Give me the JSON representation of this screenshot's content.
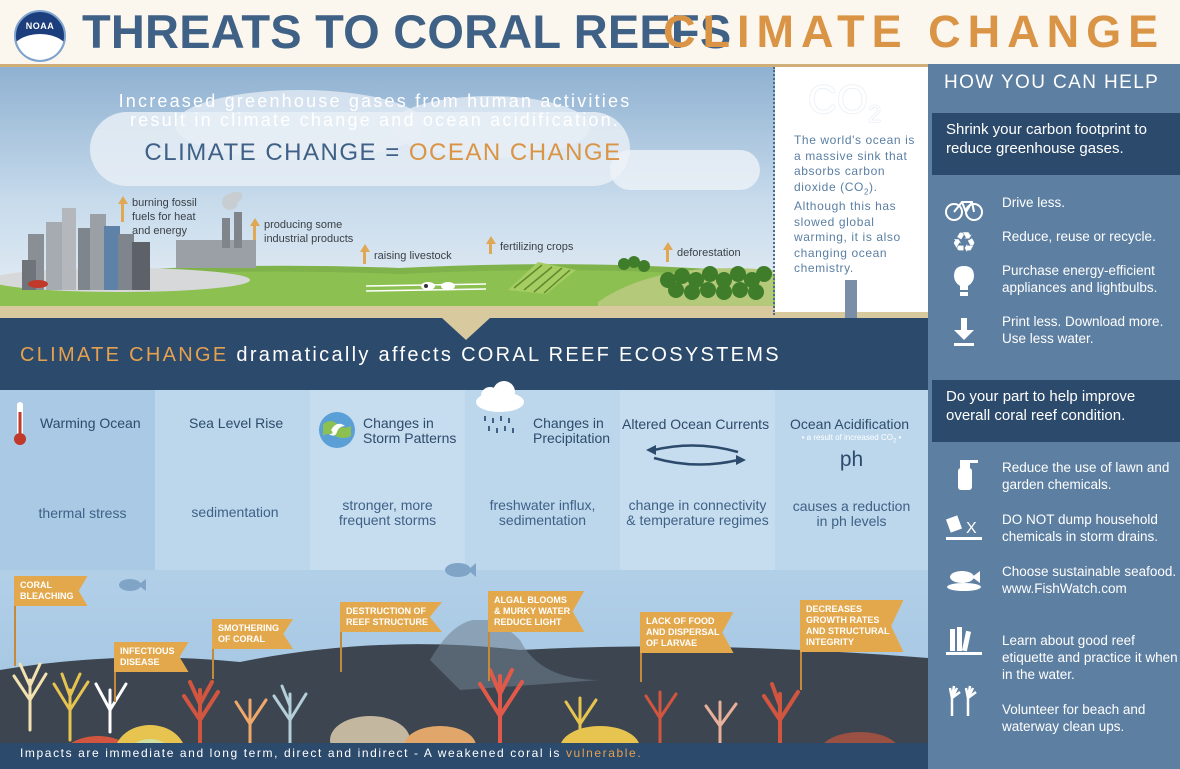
{
  "header": {
    "logo_text": "NOAA",
    "title": "THREATS TO CORAL REEFS",
    "title_accent": "CLIMATE CHANGE"
  },
  "sky": {
    "intro_line1": "Increased greenhouse gases from human activities",
    "intro_line2": "result in climate change and ocean acidification.",
    "equation_lhs": "CLIMATE CHANGE",
    "equation_eq": "=",
    "equation_rhs": "OCEAN CHANGE",
    "causes": [
      {
        "line1": "burning fossil",
        "line2": "fuels for heat",
        "line3": "and energy"
      },
      {
        "line1": "producing some",
        "line2": "industrial products"
      },
      {
        "line1": "raising livestock"
      },
      {
        "line1": "fertilizing crops"
      },
      {
        "line1": "deforestation"
      }
    ]
  },
  "co2": {
    "label": "CO",
    "sub": "2",
    "text_a": "The world's ocean is a massive sink that absorbs carbon dioxide (CO",
    "text_sub": "2",
    "text_b": "). Although this has slowed global warming, it is also changing ocean chemistry."
  },
  "section": {
    "accent": "CLIMATE CHANGE",
    "middle": "dramatically affects",
    "end": "CORAL REEF ECOSYSTEMS"
  },
  "columns": [
    {
      "title": "Warming Ocean",
      "effect_line1": "thermal stress",
      "icon": "thermometer-icon"
    },
    {
      "title": "Sea Level Rise",
      "effect_line1": "sedimentation",
      "icon": "none"
    },
    {
      "title_line1": "Changes in",
      "title_line2": "Storm Patterns",
      "effect_line1": "stronger, more",
      "effect_line2": "frequent storms",
      "icon": "globe-storm-icon"
    },
    {
      "title_line1": "Changes in",
      "title_line2": "Precipitation",
      "effect_line1": "freshwater influx,",
      "effect_line2": "sedimentation",
      "icon": "rain-cloud-icon"
    },
    {
      "title": "Altered Ocean Currents",
      "effect_line1": "change in connectivity",
      "effect_line2": "& temperature regimes",
      "icon": "current-arrows-icon"
    },
    {
      "title": "Ocean Acidification",
      "note": "• a result of increased CO",
      "note_sub": "2",
      "note_end": " •",
      "symbol": "ph",
      "effect_line1": "causes a reduction",
      "effect_line2": "in ph levels"
    }
  ],
  "impacts": [
    {
      "line1": "CORAL",
      "line2": "BLEACHING"
    },
    {
      "line1": "INFECTIOUS",
      "line2": "DISEASE"
    },
    {
      "line1": "SMOTHERING",
      "line2": "OF CORAL"
    },
    {
      "line1": "DESTRUCTION OF",
      "line2": "REEF STRUCTURE"
    },
    {
      "line1": "ALGAL BLOOMS",
      "line2": "& MURKY WATER",
      "line3": "REDUCE LIGHT"
    },
    {
      "line1": "LACK OF FOOD",
      "line2": "AND DISPERSAL",
      "line3": "OF LARVAE"
    },
    {
      "line1": "DECREASES",
      "line2": "GROWTH RATES",
      "line3": "AND STRUCTURAL",
      "line4": "INTEGRITY"
    }
  ],
  "bottom": {
    "text": "Impacts are immediate and long term, direct and indirect - A weakened coral is",
    "accent": "vulnerable."
  },
  "sidebar": {
    "heading": "HOW YOU CAN HELP",
    "box1": "Shrink your carbon footprint to reduce greenhouse gases.",
    "group1": [
      {
        "icon": "bicycle-icon",
        "text": "Drive less."
      },
      {
        "icon": "recycle-icon",
        "text": "Reduce, reuse or recycle."
      },
      {
        "icon": "lightbulb-icon",
        "text": "Purchase energy-efficient appliances and lightbulbs."
      },
      {
        "icon": "download-icon",
        "text": "Print less. Download more. Use less water."
      }
    ],
    "box2": "Do your part to help improve overall coral reef condition.",
    "group2": [
      {
        "icon": "spray-bottle-icon",
        "text": "Reduce the use of lawn and garden chemicals."
      },
      {
        "icon": "no-dumping-icon",
        "text": "DO NOT dump household chemicals in storm drains."
      },
      {
        "icon": "fish-plate-icon",
        "text": "Choose sustainable seafood. www.FishWatch.com"
      },
      {
        "icon": "books-icon",
        "text": "Learn about good reef etiquette and practice it when in the water."
      },
      {
        "icon": "raised-hands-icon",
        "text": "Volunteer for beach and waterway clean ups."
      }
    ]
  }
}
